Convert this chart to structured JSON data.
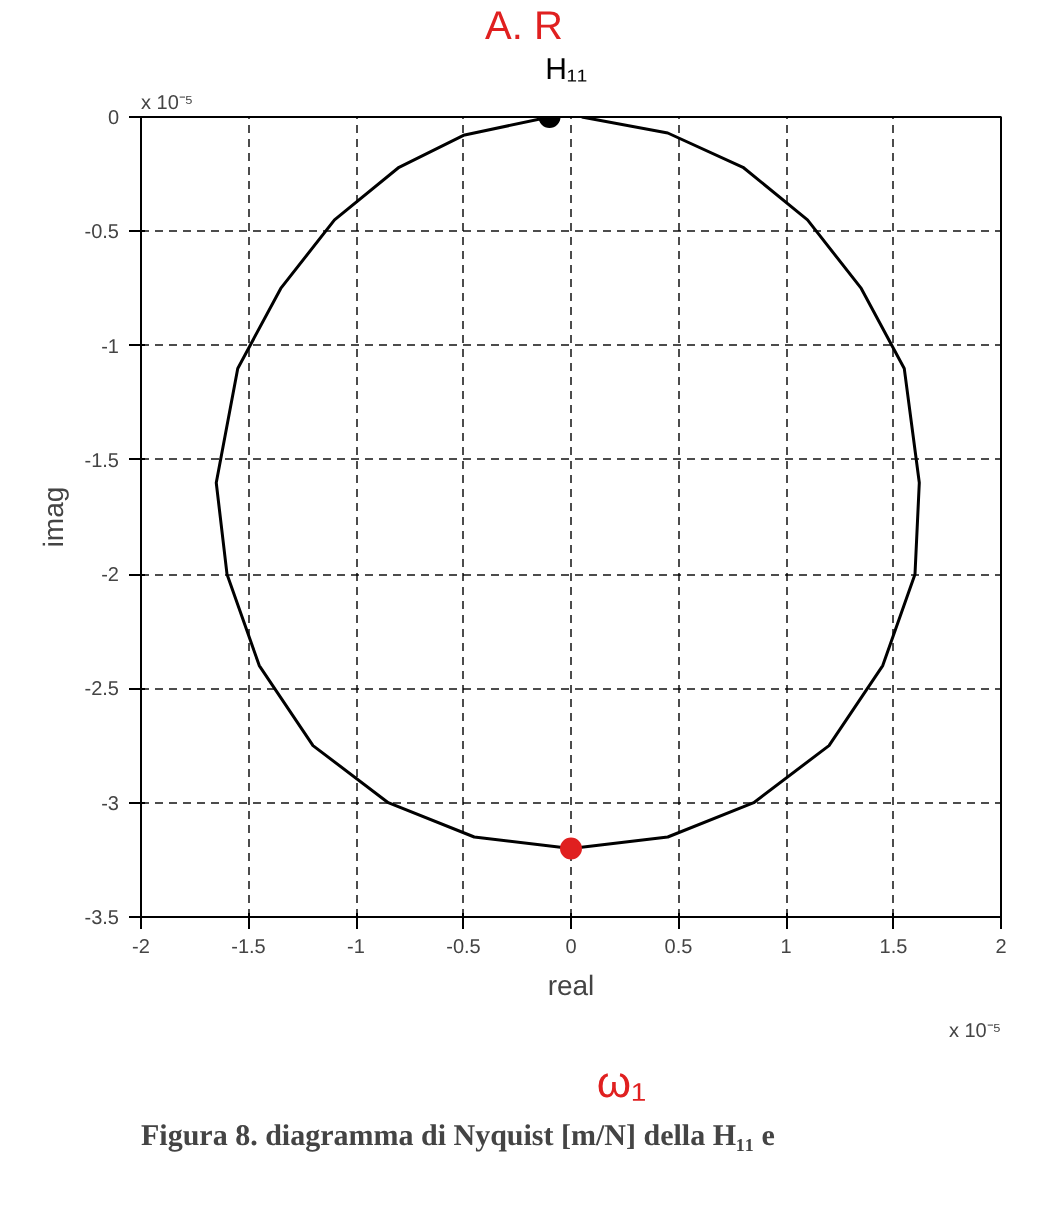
{
  "chart_data": {
    "type": "line",
    "xlabel": "real",
    "ylabel": "imag",
    "xlim": [
      -2,
      2
    ],
    "ylim": [
      -3.5,
      0
    ],
    "xticks": [
      -2,
      -1.5,
      -1,
      -0.5,
      0,
      0.5,
      1,
      1.5,
      2
    ],
    "yticks": [
      -3.5,
      -3,
      -2.5,
      -2,
      -1.5,
      -1,
      -0.5,
      0
    ],
    "grid": true,
    "series": [
      {
        "color": "#000000",
        "marker": "none",
        "line_style": "solid",
        "x": [
          -0.1,
          -0.5,
          -0.8,
          -1.1,
          -1.35,
          -1.55,
          -1.65,
          -1.6,
          -1.45,
          -1.2,
          -0.85,
          -0.45,
          0,
          0.45,
          0.85,
          1.2,
          1.45,
          1.6,
          1.62,
          1.55,
          1.35,
          1.1,
          0.8,
          0.45,
          0.05
        ],
        "values": [
          0,
          -0.08,
          -0.22,
          -0.45,
          -0.75,
          -1.1,
          -1.6,
          -2.0,
          -2.4,
          -2.75,
          -3.0,
          -3.15,
          -3.2,
          -3.15,
          -3.0,
          -2.75,
          -2.4,
          -2.0,
          -1.6,
          -1.1,
          -0.75,
          -0.45,
          -0.22,
          -0.07,
          0
        ]
      },
      {
        "type": "scatter",
        "color": "#000000",
        "marker": "circle",
        "x": [
          -0.1
        ],
        "values": [
          0
        ]
      },
      {
        "type": "scatter",
        "color": "#e02020",
        "marker": "circle",
        "x": [
          0
        ],
        "values": [
          -3.2
        ]
      }
    ],
    "annotations": [
      "x 10⁻⁵",
      "x 10⁻⁵",
      "Figura 8. diagramma di Nyquist [m/N] della H₁₁ e",
      "H₁₁",
      "A. R",
      "ω₁"
    ]
  }
}
